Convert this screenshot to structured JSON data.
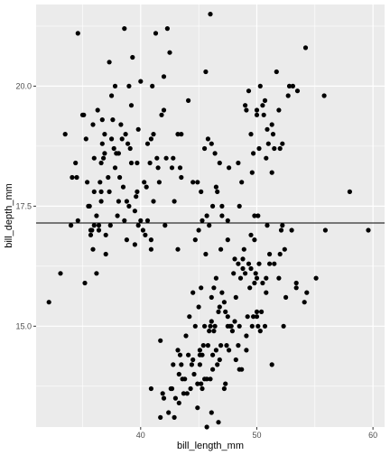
{
  "chart_data": {
    "type": "scatter",
    "title": "",
    "xlabel": "bill_length_mm",
    "ylabel": "bill_depth_mm",
    "xlim": [
      31,
      61
    ],
    "ylim": [
      12.9,
      21.7
    ],
    "x_ticks": [
      40,
      50,
      60
    ],
    "x_tick_labels": [
      "40",
      "50",
      "60"
    ],
    "y_ticks": [
      15.0,
      17.5,
      20.0
    ],
    "y_tick_labels": [
      "15.0",
      "17.5",
      "20.0"
    ],
    "grid": true,
    "legend": "none",
    "reference_line": {
      "orientation": "horizontal",
      "y": 17.15
    },
    "colors": {
      "panel": "#ebebeb",
      "grid": "#ffffff",
      "points": "#000000",
      "reference_line": "#000000"
    },
    "points": [
      [
        32.1,
        15.5
      ],
      [
        33.1,
        16.1
      ],
      [
        33.5,
        19.0
      ],
      [
        34.0,
        17.1
      ],
      [
        34.1,
        18.1
      ],
      [
        34.4,
        18.4
      ],
      [
        34.5,
        18.1
      ],
      [
        34.6,
        21.1
      ],
      [
        34.6,
        17.2
      ],
      [
        35.0,
        19.4
      ],
      [
        35.1,
        19.4
      ],
      [
        35.2,
        15.9
      ],
      [
        35.3,
        18.9
      ],
      [
        35.5,
        17.5
      ],
      [
        35.6,
        17.5
      ],
      [
        35.7,
        16.9
      ],
      [
        35.7,
        17.0
      ],
      [
        35.9,
        16.6
      ],
      [
        35.9,
        19.2
      ],
      [
        36.0,
        18.5
      ],
      [
        36.0,
        17.1
      ],
      [
        36.0,
        17.8
      ],
      [
        36.2,
        17.3
      ],
      [
        36.2,
        16.1
      ],
      [
        36.3,
        19.5
      ],
      [
        36.4,
        17.1
      ],
      [
        36.5,
        18.0
      ],
      [
        36.6,
        17.8
      ],
      [
        36.6,
        18.4
      ],
      [
        36.7,
        19.3
      ],
      [
        36.7,
        18.8
      ],
      [
        36.8,
        18.5
      ],
      [
        36.9,
        18.6
      ],
      [
        37.0,
        16.9
      ],
      [
        37.2,
        18.1
      ],
      [
        37.3,
        20.5
      ],
      [
        37.3,
        17.8
      ],
      [
        37.5,
        18.9
      ],
      [
        37.6,
        19.3
      ],
      [
        37.7,
        18.7
      ],
      [
        37.8,
        18.3
      ],
      [
        37.8,
        20.0
      ],
      [
        37.9,
        18.6
      ],
      [
        38.1,
        18.6
      ],
      [
        38.1,
        17.6
      ],
      [
        38.2,
        18.1
      ],
      [
        38.3,
        19.2
      ],
      [
        38.5,
        17.9
      ],
      [
        38.6,
        21.2
      ],
      [
        38.6,
        17.2
      ],
      [
        38.7,
        19.0
      ],
      [
        38.8,
        17.6
      ],
      [
        38.9,
        18.8
      ],
      [
        39.0,
        17.5
      ],
      [
        39.1,
        18.7
      ],
      [
        39.2,
        19.6
      ],
      [
        39.3,
        20.6
      ],
      [
        39.5,
        17.4
      ],
      [
        39.6,
        17.7
      ],
      [
        39.7,
        18.4
      ],
      [
        39.8,
        19.1
      ],
      [
        40.2,
        17.0
      ],
      [
        40.3,
        18.0
      ],
      [
        40.6,
        18.8
      ],
      [
        40.8,
        18.4
      ],
      [
        40.9,
        18.9
      ],
      [
        41.1,
        17.6
      ],
      [
        41.1,
        19.0
      ],
      [
        41.3,
        21.1
      ],
      [
        41.4,
        18.5
      ],
      [
        41.5,
        18.3
      ],
      [
        41.6,
        18.0
      ],
      [
        42.0,
        19.5
      ],
      [
        42.2,
        18.5
      ],
      [
        42.3,
        21.2
      ],
      [
        42.5,
        20.7
      ],
      [
        42.7,
        18.3
      ],
      [
        42.8,
        18.5
      ],
      [
        43.2,
        19.0
      ],
      [
        44.1,
        19.7
      ],
      [
        45.6,
        20.3
      ],
      [
        46.0,
        21.5
      ],
      [
        36.4,
        17.0
      ],
      [
        37.0,
        16.5
      ],
      [
        38.0,
        17.3
      ],
      [
        39.5,
        16.7
      ],
      [
        40.5,
        17.9
      ],
      [
        41.0,
        20.0
      ],
      [
        42.0,
        20.2
      ],
      [
        39.0,
        20.0
      ],
      [
        40.0,
        20.1
      ],
      [
        43.5,
        19.0
      ],
      [
        44.5,
        18.0
      ],
      [
        45.0,
        17.0
      ],
      [
        37.5,
        19.8
      ],
      [
        36.9,
        19.0
      ],
      [
        38.4,
        18.9
      ],
      [
        39.2,
        18.4
      ],
      [
        40.9,
        16.6
      ],
      [
        41.8,
        19.4
      ],
      [
        42.9,
        17.6
      ],
      [
        43.4,
        18.3
      ],
      [
        44.9,
        18.0
      ],
      [
        38.8,
        16.8
      ],
      [
        37.4,
        17.1
      ],
      [
        35.8,
        17.0
      ],
      [
        39.8,
        17.1
      ],
      [
        40.0,
        17.2
      ],
      [
        44.7,
        16.8
      ],
      [
        39.7,
        17.8
      ],
      [
        46.1,
        18.8
      ],
      [
        45.2,
        17.8
      ],
      [
        46.5,
        17.9
      ],
      [
        47.0,
        17.3
      ],
      [
        47.5,
        16.8
      ],
      [
        49.1,
        19.5
      ],
      [
        50.0,
        19.5
      ],
      [
        50.5,
        19.6
      ],
      [
        51.3,
        19.2
      ],
      [
        52.0,
        18.7
      ],
      [
        52.7,
        19.8
      ],
      [
        53.5,
        19.9
      ],
      [
        54.2,
        20.8
      ],
      [
        55.8,
        19.8
      ],
      [
        49.0,
        19.6
      ],
      [
        50.9,
        19.1
      ],
      [
        51.4,
        19.0
      ],
      [
        51.9,
        19.5
      ],
      [
        49.5,
        19.0
      ],
      [
        50.2,
        18.7
      ],
      [
        48.5,
        17.5
      ],
      [
        50.0,
        19.4
      ],
      [
        51.0,
        18.8
      ],
      [
        45.9,
        17.1
      ],
      [
        46.4,
        18.6
      ],
      [
        47.6,
        18.3
      ],
      [
        49.6,
        18.2
      ],
      [
        52.8,
        20.0
      ],
      [
        53.1,
        20.0
      ],
      [
        51.7,
        20.3
      ],
      [
        51.5,
        18.7
      ],
      [
        50.7,
        19.7
      ],
      [
        49.7,
        18.6
      ],
      [
        47.5,
        17.2
      ],
      [
        46.8,
        18.4
      ],
      [
        48.1,
        16.4
      ],
      [
        49.8,
        17.3
      ],
      [
        51.1,
        16.5
      ],
      [
        45.7,
        17.3
      ],
      [
        43.5,
        18.1
      ],
      [
        40.9,
        16.8
      ],
      [
        42.1,
        17.1
      ],
      [
        45.5,
        18.7
      ],
      [
        46.2,
        17.5
      ],
      [
        48.7,
        18.0
      ],
      [
        55.9,
        17.0
      ],
      [
        58.0,
        17.8
      ],
      [
        59.6,
        17.0
      ],
      [
        53.0,
        17.0
      ],
      [
        52.2,
        18.8
      ],
      [
        50.8,
        18.5
      ],
      [
        49.3,
        19.9
      ],
      [
        48.4,
        18.4
      ],
      [
        47.0,
        17.5
      ],
      [
        50.3,
        20.0
      ],
      [
        51.3,
        18.2
      ],
      [
        50.6,
        19.4
      ],
      [
        46.6,
        17.8
      ],
      [
        45.8,
        18.9
      ],
      [
        45.3,
        17.2
      ],
      [
        40.6,
        17.2
      ],
      [
        40.4,
        16.9
      ],
      [
        36.6,
        17.6
      ],
      [
        35.4,
        18.0
      ],
      [
        43.2,
        16.6
      ],
      [
        46.5,
        16.0
      ],
      [
        46.1,
        15.1
      ],
      [
        47.2,
        15.5
      ],
      [
        48.7,
        14.1
      ],
      [
        50.0,
        15.2
      ],
      [
        47.6,
        14.5
      ],
      [
        46.9,
        14.6
      ],
      [
        45.2,
        13.8
      ],
      [
        44.9,
        13.8
      ],
      [
        43.3,
        13.4
      ],
      [
        42.8,
        14.2
      ],
      [
        45.1,
        14.5
      ],
      [
        46.5,
        14.5
      ],
      [
        50.0,
        15.3
      ],
      [
        48.4,
        14.6
      ],
      [
        49.9,
        16.1
      ],
      [
        49.5,
        16.2
      ],
      [
        50.5,
        15.9
      ],
      [
        51.1,
        16.3
      ],
      [
        50.8,
        15.7
      ],
      [
        52.1,
        17.0
      ],
      [
        52.2,
        17.1
      ],
      [
        55.1,
        16.0
      ],
      [
        54.3,
        15.7
      ],
      [
        53.4,
        15.8
      ],
      [
        52.5,
        15.6
      ],
      [
        49.8,
        15.9
      ],
      [
        48.2,
        15.6
      ],
      [
        47.3,
        15.3
      ],
      [
        46.3,
        15.8
      ],
      [
        45.3,
        13.7
      ],
      [
        44.5,
        14.3
      ],
      [
        43.8,
        13.9
      ],
      [
        42.9,
        13.1
      ],
      [
        43.6,
        13.9
      ],
      [
        45.5,
        13.9
      ],
      [
        46.2,
        14.4
      ],
      [
        47.4,
        14.6
      ],
      [
        48.5,
        14.1
      ],
      [
        49.2,
        15.2
      ],
      [
        50.1,
        15.0
      ],
      [
        50.4,
        15.3
      ],
      [
        51.5,
        16.3
      ],
      [
        50.7,
        15.0
      ],
      [
        49.6,
        15.0
      ],
      [
        48.4,
        16.3
      ],
      [
        46.8,
        15.4
      ],
      [
        45.7,
        13.9
      ],
      [
        44.0,
        13.6
      ],
      [
        42.7,
        13.7
      ],
      [
        41.7,
        14.7
      ],
      [
        43.5,
        14.2
      ],
      [
        44.4,
        14.2
      ],
      [
        45.1,
        14.4
      ],
      [
        46.4,
        15.0
      ],
      [
        47.7,
        15.0
      ],
      [
        48.6,
        16.0
      ],
      [
        49.0,
        16.1
      ],
      [
        50.2,
        16.3
      ],
      [
        48.8,
        16.2
      ],
      [
        47.8,
        15.0
      ],
      [
        46.9,
        16.6
      ],
      [
        45.4,
        14.6
      ],
      [
        44.5,
        15.7
      ],
      [
        43.4,
        14.4
      ],
      [
        42.6,
        13.7
      ],
      [
        46.0,
        13.9
      ],
      [
        45.8,
        14.6
      ],
      [
        47.5,
        15.0
      ],
      [
        49.1,
        14.8
      ],
      [
        51.3,
        14.2
      ],
      [
        52.3,
        15.0
      ],
      [
        49.4,
        15.8
      ],
      [
        48.1,
        15.1
      ],
      [
        47.3,
        13.8
      ],
      [
        46.6,
        14.2
      ],
      [
        45.5,
        15.0
      ],
      [
        44.9,
        13.3
      ],
      [
        43.2,
        14.5
      ],
      [
        42.0,
        13.5
      ],
      [
        44.2,
        15.2
      ],
      [
        45.2,
        15.8
      ],
      [
        46.8,
        14.3
      ],
      [
        48.2,
        14.3
      ],
      [
        49.1,
        14.5
      ],
      [
        50.0,
        16.0
      ],
      [
        50.8,
        16.0
      ],
      [
        52.0,
        16.5
      ],
      [
        53.4,
        15.9
      ],
      [
        54.1,
        15.5
      ],
      [
        49.3,
        16.3
      ],
      [
        48.5,
        15.0
      ],
      [
        47.2,
        13.7
      ],
      [
        46.1,
        13.2
      ],
      [
        45.0,
        15.4
      ],
      [
        43.3,
        14.0
      ],
      [
        41.7,
        13.1
      ],
      [
        40.9,
        13.7
      ],
      [
        45.9,
        14.9
      ],
      [
        46.7,
        15.3
      ],
      [
        47.5,
        15.2
      ],
      [
        48.8,
        16.4
      ],
      [
        49.8,
        16.8
      ],
      [
        50.9,
        17.1
      ],
      [
        51.9,
        16.0
      ],
      [
        52.4,
        16.6
      ],
      [
        46.1,
        15.6
      ],
      [
        45.6,
        16.5
      ],
      [
        44.7,
        15.0
      ],
      [
        43.9,
        14.8
      ],
      [
        42.4,
        13.2
      ],
      [
        41.9,
        13.6
      ],
      [
        43.7,
        13.6
      ],
      [
        44.6,
        14.0
      ],
      [
        45.3,
        14.4
      ],
      [
        46.2,
        14.1
      ],
      [
        47.9,
        14.9
      ],
      [
        48.9,
        16.6
      ],
      [
        49.5,
        16.9
      ],
      [
        50.1,
        17.3
      ],
      [
        46.0,
        15.0
      ],
      [
        44.1,
        14.4
      ],
      [
        43.0,
        13.5
      ],
      [
        46.3,
        14.9
      ],
      [
        47.0,
        15.7
      ],
      [
        48.0,
        16.1
      ],
      [
        49.7,
        15.2
      ],
      [
        50.3,
        14.9
      ],
      [
        45.1,
        14.2
      ],
      [
        44.3,
        13.7
      ],
      [
        45.7,
        12.9
      ],
      [
        46.7,
        13.0
      ]
    ]
  }
}
